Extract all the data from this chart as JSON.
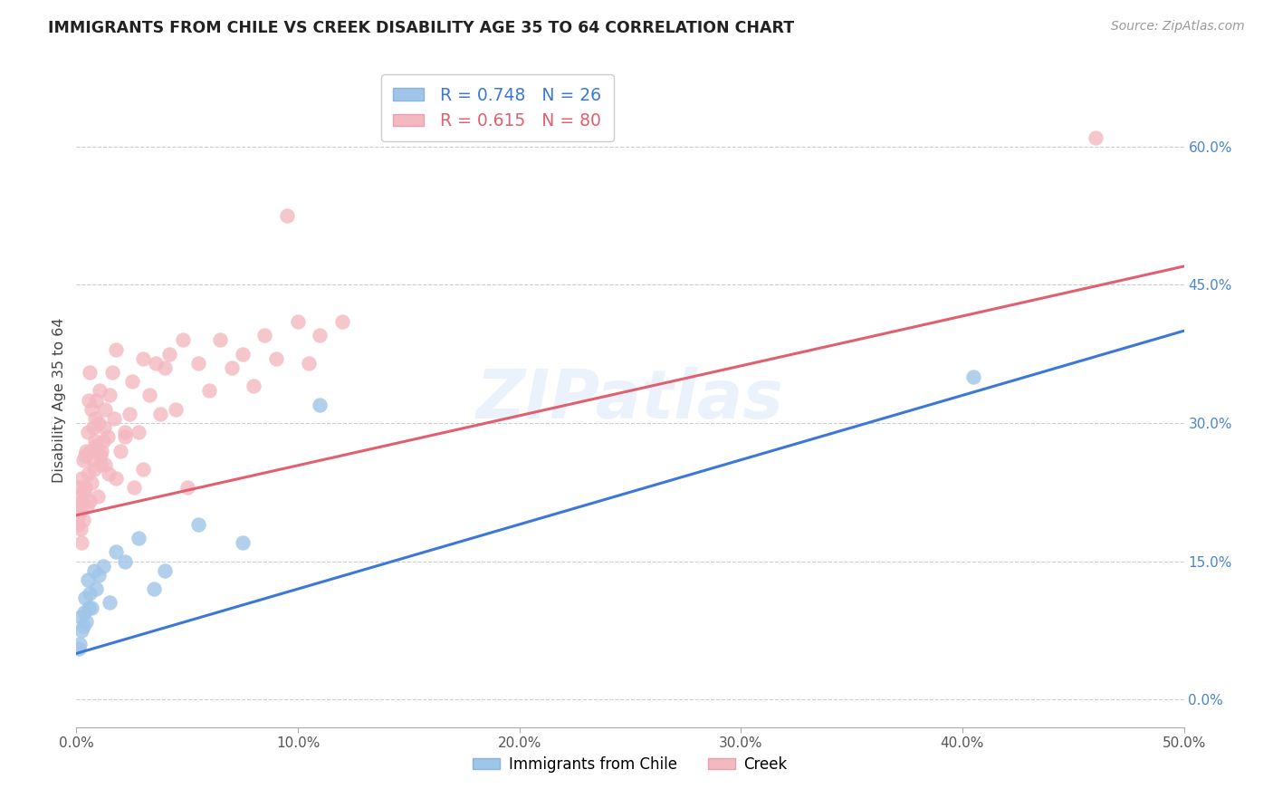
{
  "title": "IMMIGRANTS FROM CHILE VS CREEK DISABILITY AGE 35 TO 64 CORRELATION CHART",
  "source": "Source: ZipAtlas.com",
  "ylabel": "Disability Age 35 to 64",
  "xlim": [
    0.0,
    50.0
  ],
  "ylim": [
    -3.0,
    68.0
  ],
  "xticks": [
    0.0,
    10.0,
    20.0,
    30.0,
    40.0,
    50.0
  ],
  "yticks_right": [
    0.0,
    15.0,
    30.0,
    45.0,
    60.0
  ],
  "legend_label1": "Immigrants from Chile",
  "legend_label2": "Creek",
  "r1": "0.748",
  "n1": "26",
  "r2": "0.615",
  "n2": "80",
  "blue_color": "#9fc5e8",
  "pink_color": "#f4b8c1",
  "blue_line_color": "#3c78d8",
  "pink_line_color": "#e06070",
  "background_color": "#ffffff",
  "grid_color": "#cccccc",
  "blue_x": [
    0.1,
    0.15,
    0.2,
    0.25,
    0.3,
    0.35,
    0.4,
    0.45,
    0.5,
    0.55,
    0.6,
    0.7,
    0.8,
    0.9,
    1.0,
    1.2,
    1.5,
    1.8,
    2.2,
    2.8,
    4.0,
    5.5,
    7.5,
    3.5,
    11.0,
    40.5
  ],
  "blue_y": [
    5.5,
    6.0,
    9.0,
    7.5,
    8.0,
    9.5,
    11.0,
    8.5,
    13.0,
    10.0,
    11.5,
    10.0,
    14.0,
    12.0,
    13.5,
    14.5,
    10.5,
    16.0,
    15.0,
    17.5,
    14.0,
    19.0,
    17.0,
    12.0,
    32.0,
    35.0
  ],
  "pink_x": [
    0.05,
    0.08,
    0.1,
    0.12,
    0.15,
    0.18,
    0.2,
    0.22,
    0.25,
    0.28,
    0.3,
    0.33,
    0.35,
    0.38,
    0.4,
    0.43,
    0.46,
    0.5,
    0.53,
    0.56,
    0.6,
    0.65,
    0.7,
    0.75,
    0.8,
    0.85,
    0.9,
    0.95,
    1.0,
    1.05,
    1.1,
    1.2,
    1.3,
    1.4,
    1.5,
    1.6,
    1.7,
    1.8,
    2.0,
    2.2,
    2.4,
    2.6,
    2.8,
    3.0,
    3.3,
    3.6,
    4.0,
    4.5,
    5.0,
    5.5,
    6.0,
    6.5,
    7.0,
    7.5,
    8.0,
    8.5,
    9.0,
    9.5,
    10.0,
    10.5,
    11.0,
    12.0,
    3.0,
    2.5,
    1.8,
    2.2,
    0.7,
    0.9,
    1.1,
    1.3,
    0.6,
    0.75,
    0.85,
    1.15,
    1.25,
    1.45,
    3.8,
    4.2,
    4.8,
    46.0
  ],
  "pink_y": [
    20.0,
    19.0,
    22.0,
    21.0,
    23.0,
    18.5,
    20.5,
    24.0,
    17.0,
    21.5,
    26.0,
    19.5,
    22.5,
    23.0,
    26.5,
    27.0,
    21.0,
    29.0,
    24.5,
    32.5,
    21.5,
    27.0,
    23.5,
    29.5,
    25.0,
    30.5,
    27.5,
    22.0,
    30.0,
    33.5,
    25.5,
    28.0,
    31.5,
    28.5,
    33.0,
    35.5,
    30.5,
    38.0,
    27.0,
    29.0,
    31.0,
    23.0,
    29.0,
    37.0,
    33.0,
    36.5,
    36.0,
    31.5,
    23.0,
    36.5,
    33.5,
    39.0,
    36.0,
    37.5,
    34.0,
    39.5,
    37.0,
    52.5,
    41.0,
    36.5,
    39.5,
    41.0,
    25.0,
    34.5,
    24.0,
    28.5,
    31.5,
    32.5,
    26.5,
    25.5,
    35.5,
    26.0,
    28.0,
    27.0,
    29.5,
    24.5,
    31.0,
    37.5,
    39.0,
    61.0
  ]
}
